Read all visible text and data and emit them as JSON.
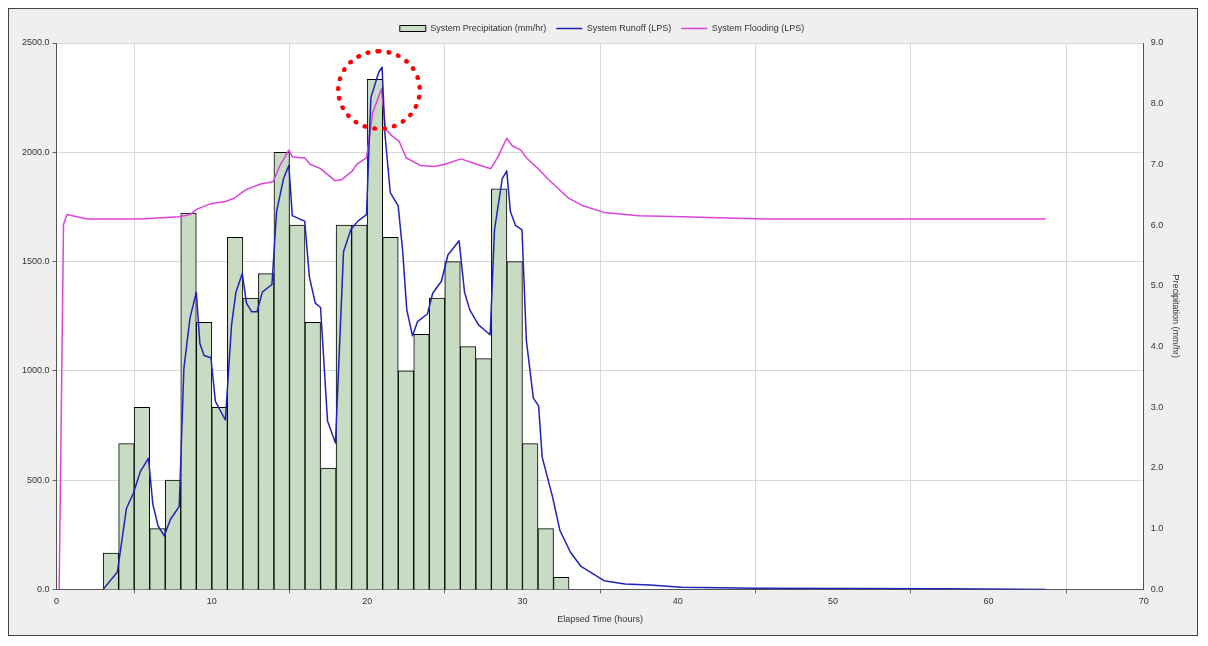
{
  "chart_data": {
    "type": "line",
    "xlabel": "Elapsed Time (hours)",
    "y2label": "Precipitation (mm/hr)",
    "legend": "top",
    "grid": true,
    "marker": "none",
    "line_style": "solid",
    "xlim": [
      0,
      70
    ],
    "xticks": [
      0,
      10,
      20,
      30,
      40,
      50,
      60,
      70
    ],
    "ylim": [
      0,
      2500
    ],
    "yticks": [
      {
        "value": 0,
        "label": "0.0"
      },
      {
        "value": 500,
        "label": "500.0"
      },
      {
        "value": 1000,
        "label": "1000.0"
      },
      {
        "value": 1500,
        "label": "1500.0"
      },
      {
        "value": 2000,
        "label": "2000.0"
      },
      {
        "value": 2500,
        "label": "2500.0"
      }
    ],
    "y2lim": [
      0,
      9
    ],
    "y2ticks": [
      {
        "value": 0,
        "label": "0.0"
      },
      {
        "value": 1,
        "label": "1.0"
      },
      {
        "value": 2,
        "label": "2.0"
      },
      {
        "value": 3,
        "label": "3.0"
      },
      {
        "value": 4,
        "label": "4.0"
      },
      {
        "value": 5,
        "label": "5.0"
      },
      {
        "value": 6,
        "label": "6.0"
      },
      {
        "value": 7,
        "label": "7.0"
      },
      {
        "value": 8,
        "label": "8.0"
      },
      {
        "value": 9,
        "label": "9.0"
      }
    ],
    "series": [
      {
        "name": "System Precipitation (mm/hr)",
        "type": "bar",
        "axis": "y2",
        "color": "#c8dcc4",
        "x": [
          3.5,
          4.5,
          5.5,
          6.5,
          7.5,
          8.5,
          9.5,
          10.5,
          11.5,
          12.5,
          13.5,
          14.5,
          15.5,
          16.5,
          17.5,
          18.5,
          19.5,
          20.5,
          21.5,
          22.5,
          23.5,
          24.5,
          25.5,
          26.5,
          27.5,
          28.5,
          29.5,
          30.5,
          31.5,
          32.5
        ],
        "values": [
          0.6,
          2.4,
          3.0,
          1.0,
          1.8,
          6.2,
          4.4,
          3.0,
          5.8,
          4.8,
          5.2,
          7.2,
          6.0,
          4.4,
          2.0,
          6.0,
          6.0,
          8.4,
          5.8,
          3.6,
          4.2,
          4.8,
          5.4,
          4.0,
          3.8,
          6.6,
          5.4,
          2.4,
          1.0,
          0.2
        ]
      },
      {
        "name": "System Runoff (LPS)",
        "color": "#2222bb",
        "x": [
          3.0,
          3.92,
          4.5,
          4.95,
          5.4,
          5.92,
          6.2,
          6.54,
          6.94,
          7.33,
          7.9,
          8.2,
          8.59,
          9.0,
          9.23,
          9.5,
          9.94,
          10.23,
          10.87,
          11.27,
          11.55,
          11.96,
          12.23,
          12.57,
          12.91,
          13.25,
          13.87,
          14.17,
          14.62,
          14.96,
          15.18,
          15.64,
          15.98,
          16.28,
          16.66,
          17.0,
          17.45,
          17.96,
          18.48,
          18.94,
          19.4,
          19.96,
          20.24,
          20.74,
          20.96,
          21.15,
          21.49,
          22.0,
          22.29,
          22.55,
          22.92,
          23.24,
          23.88,
          24.22,
          24.78,
          25.2,
          25.92,
          26.27,
          26.6,
          27.17,
          27.92,
          28.2,
          28.7,
          28.99,
          29.22,
          29.55,
          29.97,
          30.25,
          30.7,
          31.04,
          31.27,
          31.95,
          32.41,
          33.09,
          33.77,
          35.25,
          36.6,
          38.2,
          40.25,
          45,
          57,
          63.7
        ],
        "values": [
          0,
          80,
          370,
          440,
          540,
          600,
          390,
          290,
          245,
          320,
          380,
          1010,
          1240,
          1360,
          1125,
          1070,
          1060,
          860,
          775,
          1210,
          1360,
          1445,
          1310,
          1270,
          1270,
          1360,
          1395,
          1730,
          1880,
          1940,
          1710,
          1695,
          1685,
          1430,
          1310,
          1290,
          770,
          670,
          1545,
          1645,
          1685,
          1715,
          2250,
          2365,
          2390,
          2080,
          1815,
          1755,
          1545,
          1280,
          1160,
          1225,
          1260,
          1355,
          1410,
          1530,
          1595,
          1360,
          1280,
          1210,
          1165,
          1645,
          1880,
          1915,
          1730,
          1665,
          1645,
          1140,
          875,
          840,
          605,
          420,
          270,
          170,
          105,
          40,
          25,
          20,
          10,
          5,
          3,
          0
        ]
      },
      {
        "name": "System Flooding (LPS)",
        "color": "#dd44dd",
        "x": [
          0.17,
          0.45,
          0.67,
          1.97,
          5.4,
          7.9,
          8.6,
          9.04,
          9.94,
          10.87,
          11.43,
          12.23,
          13.14,
          13.94,
          14.39,
          14.96,
          15.18,
          15.64,
          15.98,
          16.32,
          17.0,
          17.92,
          18.37,
          19.05,
          19.33,
          19.96,
          20.35,
          20.92,
          21.19,
          21.6,
          22.06,
          22.51,
          23.42,
          24.33,
          25.01,
          26.04,
          27.06,
          27.96,
          28.43,
          28.99,
          29.34,
          29.9,
          30.25,
          30.93,
          31.61,
          32.97,
          33.89,
          35.25,
          37.5,
          40.25,
          45.7,
          63.7
        ],
        "values": [
          0,
          1670,
          1715,
          1695,
          1695,
          1705,
          1715,
          1740,
          1765,
          1775,
          1790,
          1830,
          1855,
          1865,
          1940,
          2010,
          1980,
          1975,
          1975,
          1945,
          1925,
          1870,
          1875,
          1915,
          1945,
          1975,
          2180,
          2290,
          2105,
          2075,
          2050,
          1975,
          1940,
          1935,
          1945,
          1970,
          1945,
          1925,
          1980,
          2065,
          2030,
          2010,
          1975,
          1930,
          1880,
          1790,
          1755,
          1725,
          1710,
          1705,
          1695,
          1695
        ]
      }
    ]
  }
}
